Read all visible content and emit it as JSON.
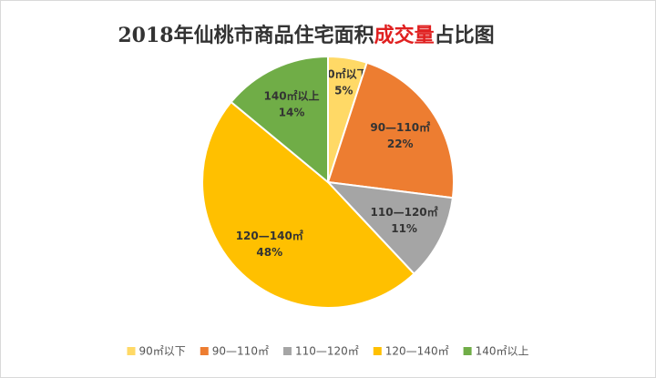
{
  "chart_data": {
    "type": "pie",
    "title": [
      {
        "text": "2018年仙桃市商品住宅面积",
        "color": "#333333"
      },
      {
        "text": "成交量",
        "color": "#e02020"
      },
      {
        "text": "占比图",
        "color": "#333333"
      }
    ],
    "categories": [
      "90㎡以下",
      "90—110㎡",
      "110—120㎡",
      "120—140㎡",
      "140㎡以上"
    ],
    "values": [
      5,
      22,
      11,
      48,
      14
    ],
    "value_labels": [
      "5%",
      "22%",
      "11%",
      "48%",
      "14%"
    ],
    "colors": [
      "#ffd966",
      "#ed7d31",
      "#a5a5a5",
      "#ffc000",
      "#70ad47"
    ],
    "legend": "bottom"
  }
}
